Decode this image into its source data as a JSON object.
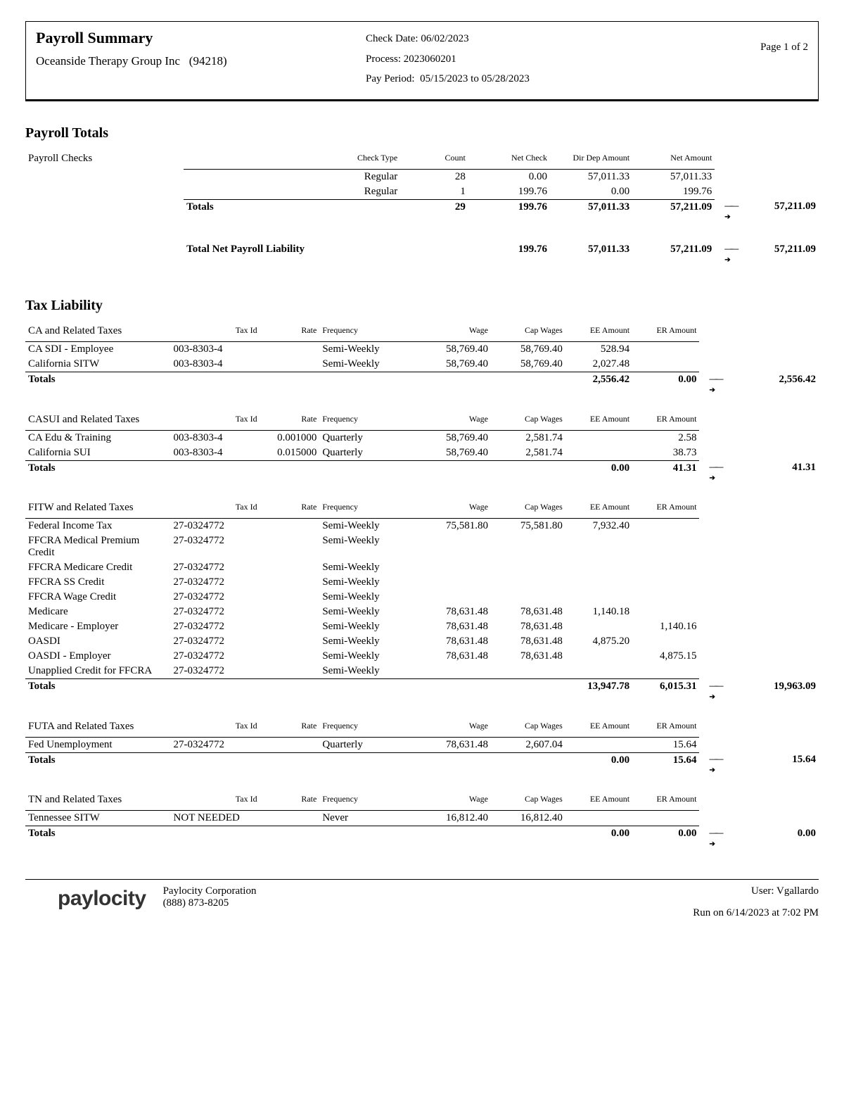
{
  "header": {
    "title": "Payroll Summary",
    "company": "Oceanside Therapy Group Inc",
    "company_code": "(94218)",
    "check_date_label": "Check Date:",
    "check_date": "06/02/2023",
    "process_label": "Process:",
    "process": "2023060201",
    "pay_period_label": "Pay Period:",
    "pay_period": "05/15/2023 to 05/28/2023",
    "page": "Page 1 of 2"
  },
  "payroll_totals": {
    "section_title": "Payroll Totals",
    "group_label": "Payroll Checks",
    "columns": {
      "check_type": "Check Type",
      "count": "Count",
      "net_check": "Net Check",
      "dir_dep": "Dir Dep Amount",
      "net_amount": "Net Amount"
    },
    "rows": [
      {
        "check_type": "Regular",
        "count": "28",
        "net_check": "0.00",
        "dir_dep": "57,011.33",
        "net_amount": "57,011.33"
      },
      {
        "check_type": "Regular",
        "count": "1",
        "net_check": "199.76",
        "dir_dep": "0.00",
        "net_amount": "199.76"
      }
    ],
    "totals_label": "Totals",
    "totals": {
      "count": "29",
      "net_check": "199.76",
      "dir_dep": "57,011.33",
      "net_amount": "57,211.09",
      "grand": "57,211.09"
    },
    "net_liability_label": "Total Net Payroll Liability",
    "net_liability": {
      "net_check": "199.76",
      "dir_dep": "57,011.33",
      "net_amount": "57,211.09",
      "grand": "57,211.09"
    }
  },
  "tax_liability": {
    "section_title": "Tax Liability",
    "columns": {
      "taxid": "Tax Id",
      "rate": "Rate",
      "freq": "Frequency",
      "wage": "Wage",
      "cap": "Cap Wages",
      "ee": "EE Amount",
      "er": "ER Amount"
    },
    "groups": [
      {
        "title": "CA and Related Taxes",
        "rows": [
          {
            "name": "CA SDI - Employee",
            "taxid": "003-8303-4",
            "rate": "",
            "freq": "Semi-Weekly",
            "wage": "58,769.40",
            "cap": "58,769.40",
            "ee": "528.94",
            "er": ""
          },
          {
            "name": "California SITW",
            "taxid": "003-8303-4",
            "rate": "",
            "freq": "Semi-Weekly",
            "wage": "58,769.40",
            "cap": "58,769.40",
            "ee": "2,027.48",
            "er": ""
          }
        ],
        "totals": {
          "ee": "2,556.42",
          "er": "0.00",
          "grand": "2,556.42"
        }
      },
      {
        "title": "CASUI and Related Taxes",
        "rows": [
          {
            "name": "CA Edu & Training",
            "taxid": "003-8303-4",
            "rate": "0.001000",
            "freq": "Quarterly",
            "wage": "58,769.40",
            "cap": "2,581.74",
            "ee": "",
            "er": "2.58"
          },
          {
            "name": "California SUI",
            "taxid": "003-8303-4",
            "rate": "0.015000",
            "freq": "Quarterly",
            "wage": "58,769.40",
            "cap": "2,581.74",
            "ee": "",
            "er": "38.73"
          }
        ],
        "totals": {
          "ee": "0.00",
          "er": "41.31",
          "grand": "41.31"
        }
      },
      {
        "title": "FITW and Related Taxes",
        "rows": [
          {
            "name": "Federal Income Tax",
            "taxid": "27-0324772",
            "rate": "",
            "freq": "Semi-Weekly",
            "wage": "75,581.80",
            "cap": "75,581.80",
            "ee": "7,932.40",
            "er": ""
          },
          {
            "name": "FFCRA Medical Premium Credit",
            "taxid": "27-0324772",
            "rate": "",
            "freq": "Semi-Weekly",
            "wage": "",
            "cap": "",
            "ee": "",
            "er": ""
          },
          {
            "name": "FFCRA Medicare Credit",
            "taxid": "27-0324772",
            "rate": "",
            "freq": "Semi-Weekly",
            "wage": "",
            "cap": "",
            "ee": "",
            "er": ""
          },
          {
            "name": "FFCRA SS Credit",
            "taxid": "27-0324772",
            "rate": "",
            "freq": "Semi-Weekly",
            "wage": "",
            "cap": "",
            "ee": "",
            "er": ""
          },
          {
            "name": "FFCRA Wage Credit",
            "taxid": "27-0324772",
            "rate": "",
            "freq": "Semi-Weekly",
            "wage": "",
            "cap": "",
            "ee": "",
            "er": ""
          },
          {
            "name": "Medicare",
            "taxid": "27-0324772",
            "rate": "",
            "freq": "Semi-Weekly",
            "wage": "78,631.48",
            "cap": "78,631.48",
            "ee": "1,140.18",
            "er": ""
          },
          {
            "name": "Medicare - Employer",
            "taxid": "27-0324772",
            "rate": "",
            "freq": "Semi-Weekly",
            "wage": "78,631.48",
            "cap": "78,631.48",
            "ee": "",
            "er": "1,140.16"
          },
          {
            "name": "OASDI",
            "taxid": "27-0324772",
            "rate": "",
            "freq": "Semi-Weekly",
            "wage": "78,631.48",
            "cap": "78,631.48",
            "ee": "4,875.20",
            "er": ""
          },
          {
            "name": "OASDI - Employer",
            "taxid": "27-0324772",
            "rate": "",
            "freq": "Semi-Weekly",
            "wage": "78,631.48",
            "cap": "78,631.48",
            "ee": "",
            "er": "4,875.15"
          },
          {
            "name": "Unapplied Credit for FFCRA",
            "taxid": "27-0324772",
            "rate": "",
            "freq": "Semi-Weekly",
            "wage": "",
            "cap": "",
            "ee": "",
            "er": ""
          }
        ],
        "totals": {
          "ee": "13,947.78",
          "er": "6,015.31",
          "grand": "19,963.09"
        }
      },
      {
        "title": "FUTA and Related Taxes",
        "rows": [
          {
            "name": "Fed Unemployment",
            "taxid": "27-0324772",
            "rate": "",
            "freq": "Quarterly",
            "wage": "78,631.48",
            "cap": "2,607.04",
            "ee": "",
            "er": "15.64"
          }
        ],
        "totals": {
          "ee": "0.00",
          "er": "15.64",
          "grand": "15.64"
        }
      },
      {
        "title": "TN and Related Taxes",
        "rows": [
          {
            "name": "Tennessee SITW",
            "taxid": "NOT NEEDED",
            "rate": "",
            "freq": "Never",
            "wage": "16,812.40",
            "cap": "16,812.40",
            "ee": "",
            "er": ""
          }
        ],
        "totals": {
          "ee": "0.00",
          "er": "0.00",
          "grand": "0.00"
        }
      }
    ],
    "totals_label": "Totals"
  },
  "footer": {
    "brand": "paylocity",
    "corp": "Paylocity Corporation",
    "phone": "(888) 873-8205",
    "user_label": "User:",
    "user": "Vgallardo",
    "run": "Run on 6/14/2023 at 7:02 PM",
    "logo_colors": {
      "orange": "#f88d2b",
      "red": "#c1272d"
    }
  }
}
